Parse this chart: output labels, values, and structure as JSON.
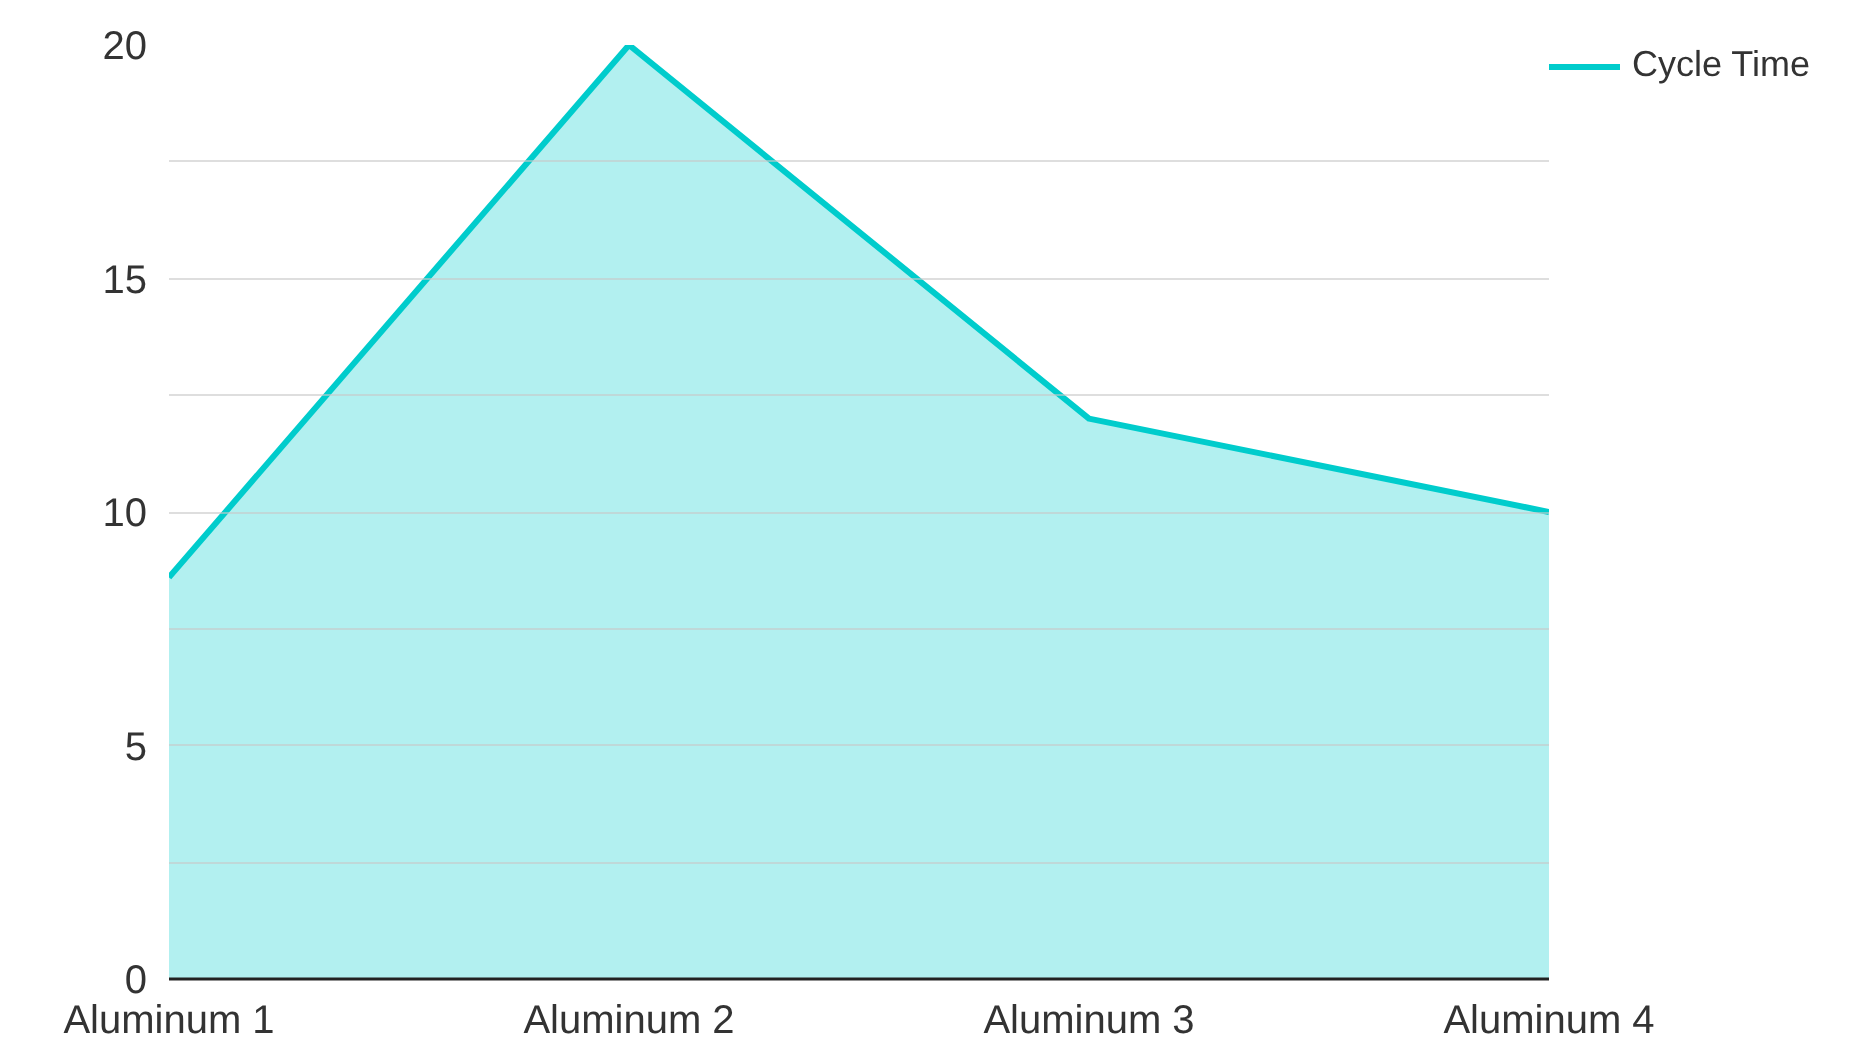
{
  "chart_data": {
    "type": "area",
    "categories": [
      "Aluminum 1",
      "Aluminum 2",
      "Aluminum 3",
      "Aluminum 4"
    ],
    "series": [
      {
        "name": "Cycle Time",
        "color": "#00cccc",
        "values": [
          8.6,
          20,
          12,
          10
        ]
      }
    ],
    "ylim": [
      0,
      20
    ],
    "yticks": [
      0,
      {
        "value": 2.5,
        "label": null
      },
      5,
      {
        "value": 7.5,
        "label": null
      },
      10,
      {
        "value": 12.5,
        "label": null
      },
      15,
      {
        "value": 17.5,
        "label": null
      },
      20
    ],
    "grid": "y",
    "legend": "top right"
  }
}
